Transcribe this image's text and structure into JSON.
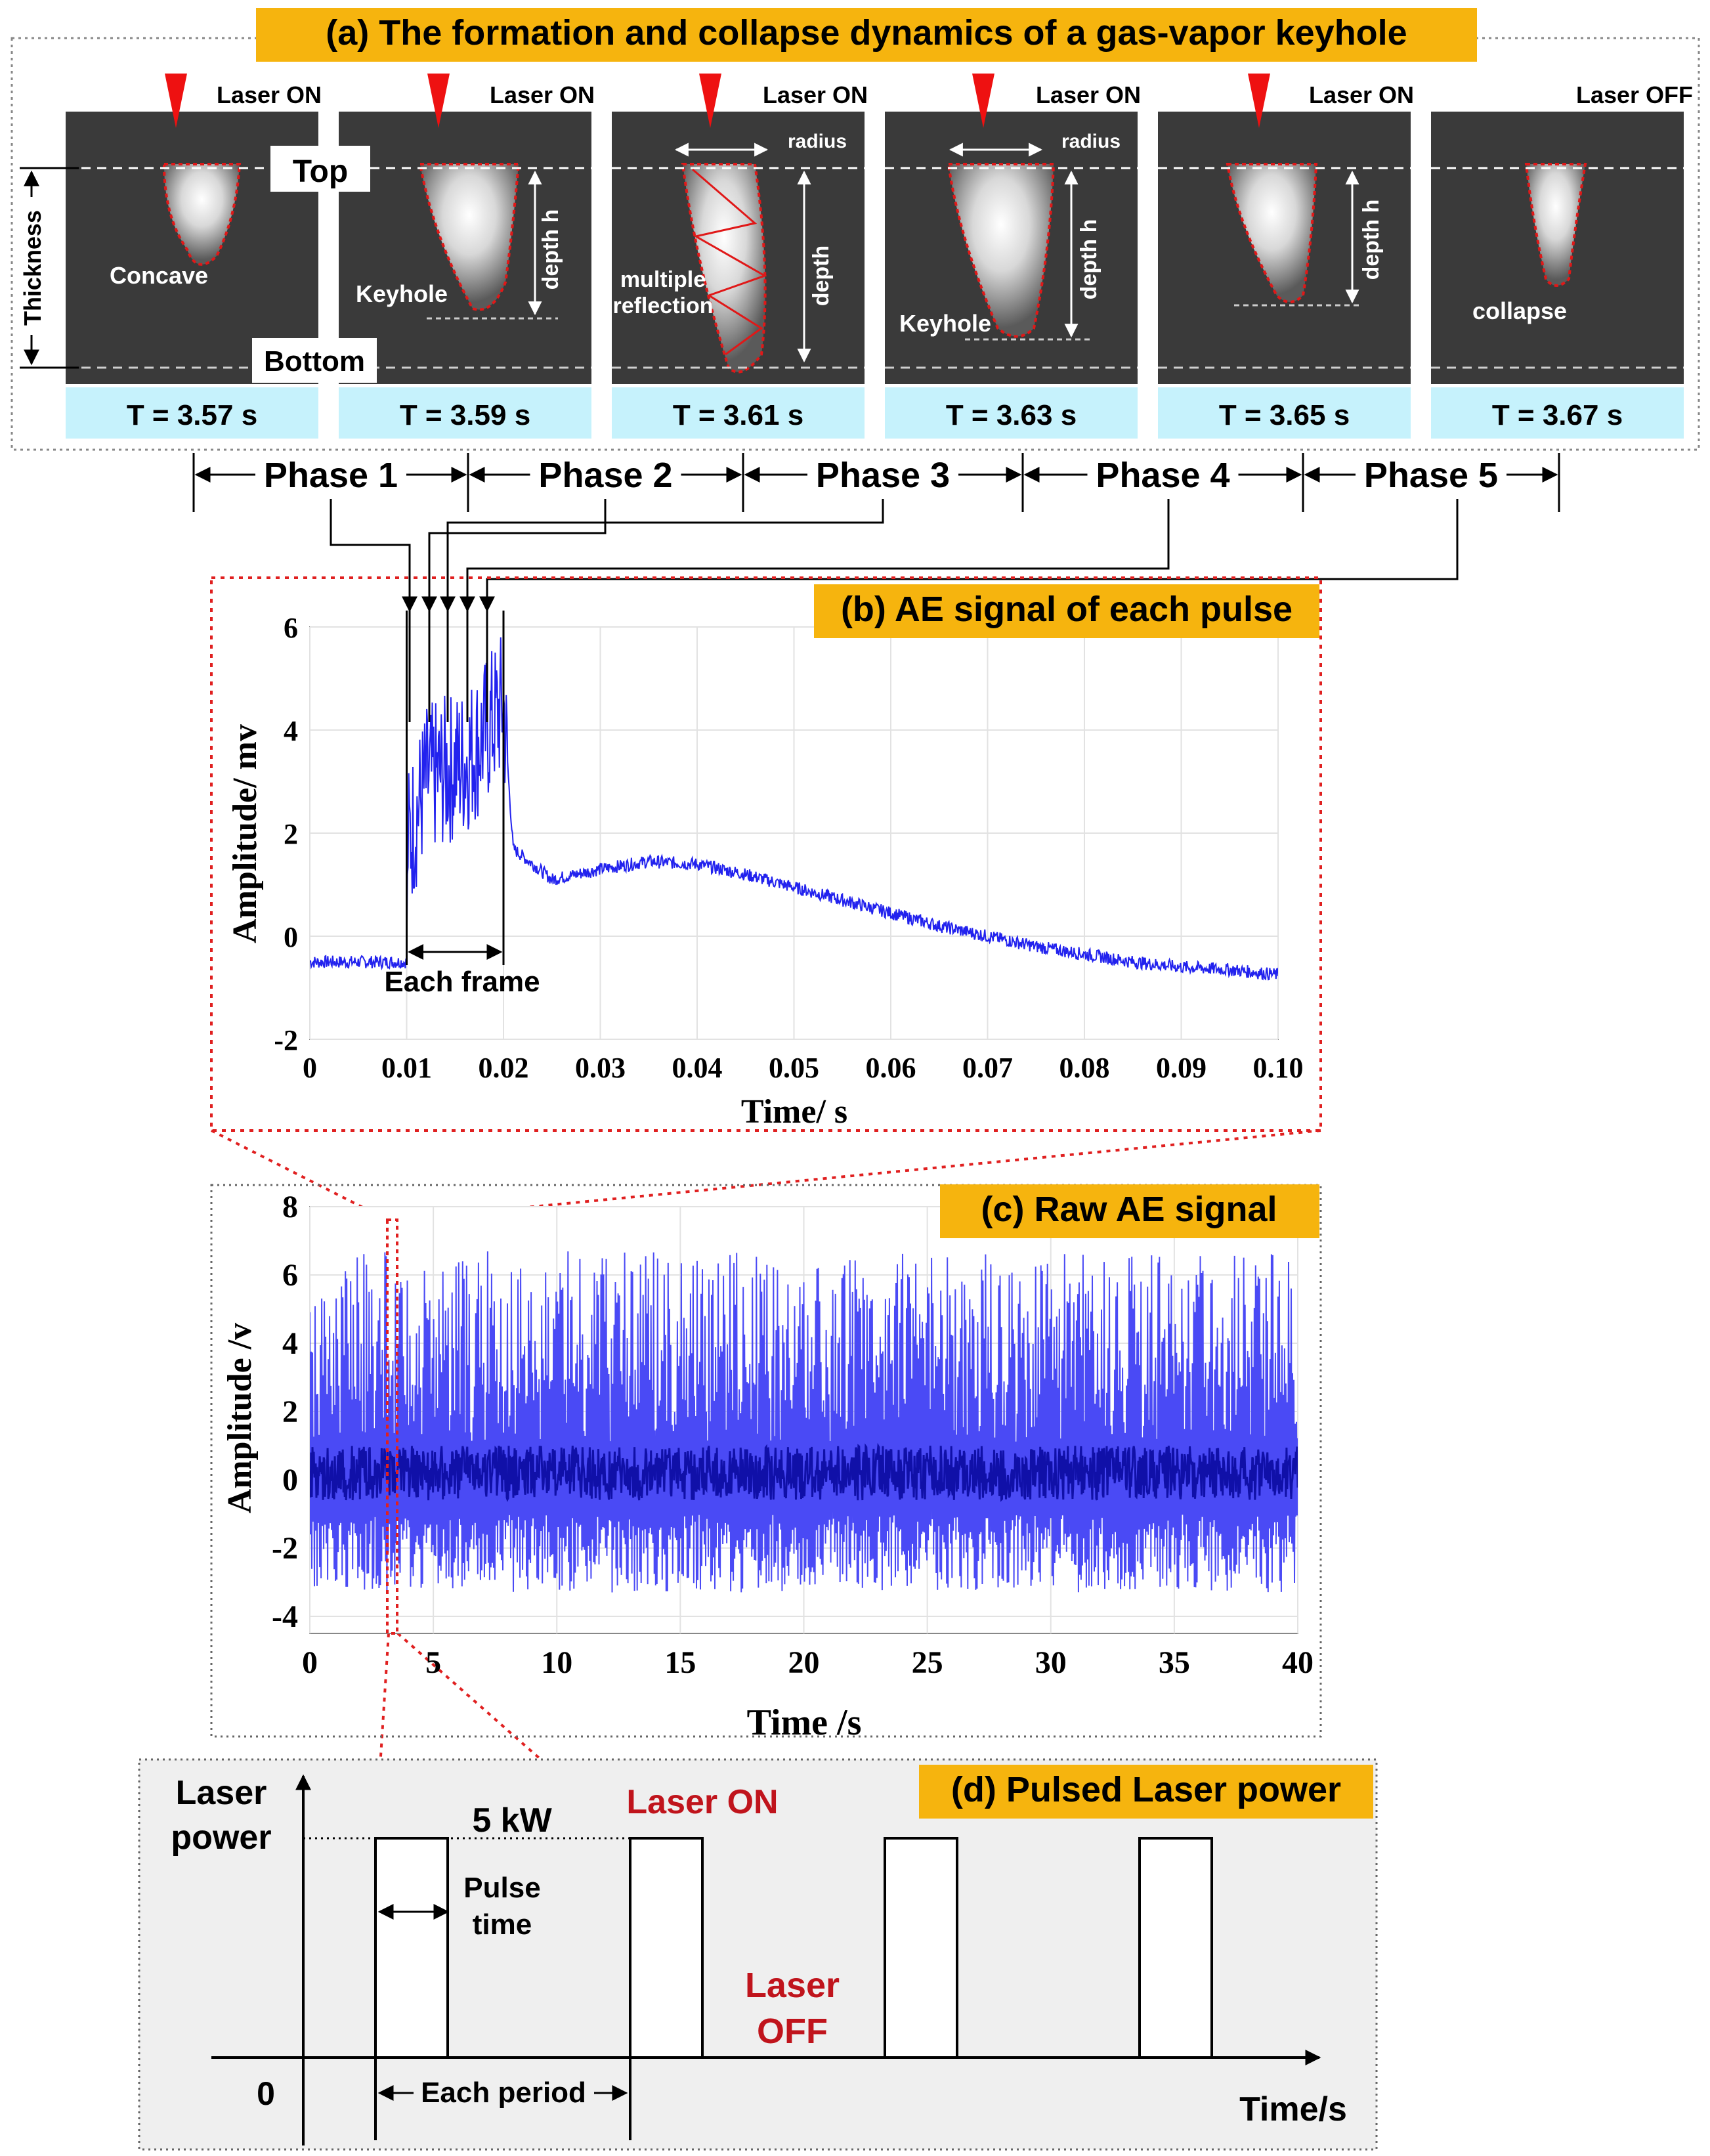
{
  "panel_a": {
    "title": "(a) The formation and collapse dynamics of a gas-vapor keyhole",
    "frames": [
      {
        "time": "T = 3.57 s",
        "laser": "Laser ON",
        "labels": [
          "Concave"
        ]
      },
      {
        "time": "T = 3.59 s",
        "laser": "Laser ON",
        "labels": [
          "Keyhole",
          "depth h"
        ]
      },
      {
        "time": "T = 3.61 s",
        "laser": "Laser ON",
        "labels": [
          "radius",
          "multiple",
          "reflection",
          "depth"
        ]
      },
      {
        "time": "T = 3.63 s",
        "laser": "Laser ON",
        "labels": [
          "radius",
          "Keyhole",
          "depth h"
        ]
      },
      {
        "time": "T = 3.65 s",
        "laser": "Laser ON",
        "labels": [
          "depth h"
        ]
      },
      {
        "time": "T = 3.67 s",
        "laser": "Laser OFF",
        "labels": [
          "collapse"
        ]
      }
    ],
    "top_label": "Top",
    "bottom_label": "Bottom",
    "thickness_label": "Thickness",
    "phases": [
      "Phase 1",
      "Phase 2",
      "Phase 3",
      "Phase 4",
      "Phase 5"
    ]
  },
  "chart_data": [
    {
      "type": "line",
      "title": "(b) AE signal of each pulse",
      "xlabel": "Time/ s",
      "ylabel": "Amplitude/ mv",
      "xlim": [
        0,
        0.1
      ],
      "ylim": [
        -2,
        6
      ],
      "xticks": [
        "0",
        "0.01",
        "0.02",
        "0.03",
        "0.04",
        "0.05",
        "0.06",
        "0.07",
        "0.08",
        "0.09",
        "0.10"
      ],
      "yticks": [
        "-2",
        "0",
        "2",
        "4",
        "6"
      ],
      "annotation": "Each frame",
      "series": [
        {
          "x": [
            0,
            0.005,
            0.01,
            0.0101,
            0.012,
            0.014,
            0.016,
            0.018,
            0.02,
            0.021,
            0.025,
            0.03,
            0.035,
            0.04,
            0.045,
            0.05,
            0.055,
            0.06,
            0.065,
            0.07,
            0.075,
            0.08,
            0.085,
            0.09,
            0.095,
            0.1
          ],
          "y": [
            -0.5,
            -0.5,
            -0.5,
            1.8,
            3.0,
            3.2,
            3.4,
            3.9,
            4.5,
            1.7,
            1.1,
            1.3,
            1.45,
            1.4,
            1.2,
            0.95,
            0.7,
            0.45,
            0.2,
            0.0,
            -0.2,
            -0.35,
            -0.5,
            -0.6,
            -0.65,
            -0.75
          ]
        }
      ]
    },
    {
      "type": "line",
      "title": "(c) Raw AE signal",
      "xlabel": "Time /s",
      "ylabel": "Amplitude /v",
      "xlim": [
        0,
        40
      ],
      "ylim": [
        -4.5,
        8
      ],
      "xticks": [
        "0",
        "5",
        "10",
        "15",
        "20",
        "25",
        "30",
        "35",
        "40"
      ],
      "yticks": [
        "-4",
        "-2",
        "0",
        "2",
        "4",
        "6",
        "8"
      ],
      "series": [
        {
          "x": [
            0,
            40
          ],
          "y": [
            0.2,
            0.2
          ],
          "envelope_high": [
            6.5,
            6.5
          ],
          "envelope_low": [
            -3.5,
            -3.5
          ]
        }
      ]
    },
    {
      "type": "line",
      "title": "(d) Pulsed Laser power",
      "ylabel": "Laser power",
      "xlabel": "Time/s",
      "origin_label": "0",
      "power_label": "5 kW",
      "annotations": [
        "Laser ON",
        "Laser OFF",
        "Pulse time",
        "Each period"
      ],
      "pulses": 4
    }
  ]
}
